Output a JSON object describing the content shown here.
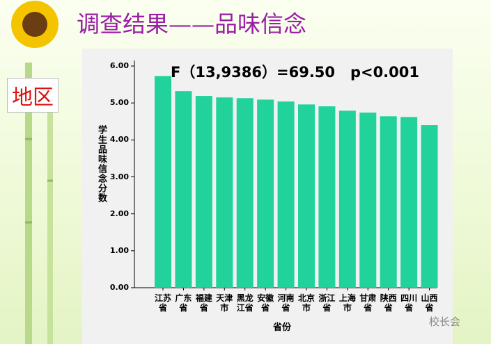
{
  "slide_title": "调查结果——品味信念",
  "side_label": "地区",
  "watermark": "校长会",
  "chart_data": {
    "type": "bar",
    "annotation": "F（13,9386）=69.50   p<0.001",
    "y_label": "学生品味信念分数",
    "x_label": "省份",
    "categories": [
      "江苏省",
      "广东省",
      "福建省",
      "天津市",
      "黑龙江省",
      "安徽省",
      "河南省",
      "北京市",
      "浙江省",
      "上海市",
      "甘肃省",
      "陕西省",
      "四川省",
      "山西省"
    ],
    "values": [
      5.73,
      5.32,
      5.19,
      5.15,
      5.13,
      5.09,
      5.04,
      4.96,
      4.91,
      4.79,
      4.74,
      4.64,
      4.62,
      4.4
    ],
    "color": "#21d39a",
    "ylim": [
      0,
      6
    ],
    "yticks": [
      {
        "value": 0,
        "label": "0.00"
      },
      {
        "value": 1,
        "label": "1.00"
      },
      {
        "value": 2,
        "label": "2.00"
      },
      {
        "value": 3,
        "label": "3.00"
      },
      {
        "value": 4,
        "label": "4.00"
      },
      {
        "value": 5,
        "label": "5.00"
      },
      {
        "value": 6,
        "label": "6.00"
      }
    ]
  }
}
